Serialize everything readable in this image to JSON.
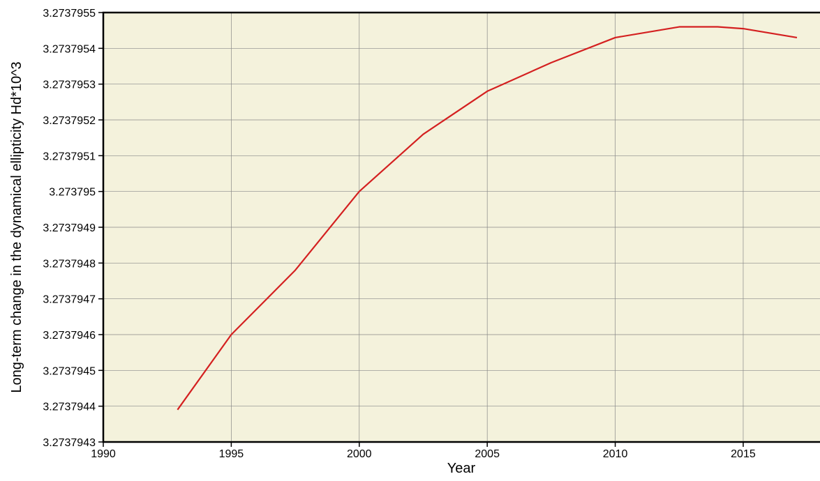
{
  "chart_data": {
    "type": "line",
    "x_label": "Year",
    "y_label": "Long-term change in the dynamical ellipticity Hd*10^3",
    "x": [
      1992.9,
      1995,
      1997.5,
      2000,
      2002.5,
      2005,
      2007.5,
      2010,
      2012.5,
      2014,
      2015,
      2017.1
    ],
    "values": [
      3.27379439,
      3.2737946,
      3.27379478,
      3.273795,
      3.27379516,
      3.27379528,
      3.27379536,
      3.27379543,
      3.27379546,
      3.27379546,
      3.273795455,
      3.27379543
    ],
    "color": "#d42020",
    "background": "#f4f2dc",
    "grid": true,
    "xlim": [
      1990,
      2018
    ],
    "xticks": [
      1990,
      1995,
      2000,
      2005,
      2010,
      2015
    ],
    "ylim": [
      3.2737943,
      3.2737955
    ],
    "yticks": [
      3.2737943,
      3.2737944,
      3.2737945,
      3.2737946,
      3.2737947,
      3.2737948,
      3.2737949,
      3.273795,
      3.2737951,
      3.2737952,
      3.2737953,
      3.2737954,
      3.2737955
    ]
  }
}
